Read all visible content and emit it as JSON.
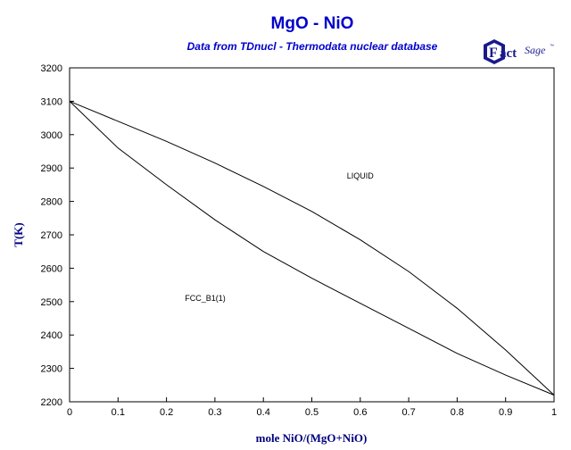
{
  "chart_data": {
    "type": "line",
    "title": "MgO - NiO",
    "subtitle": "Data from TDnucl - Thermodata nuclear database",
    "xlabel": "mole NiO/(MgO+NiO)",
    "ylabel": "T(K)",
    "xlim": [
      0,
      1
    ],
    "ylim": [
      2200,
      3200
    ],
    "x_ticks": [
      0,
      0.1,
      0.2,
      0.3,
      0.4,
      0.5,
      0.6,
      0.7,
      0.8,
      0.9,
      1
    ],
    "y_ticks": [
      2200,
      2300,
      2400,
      2500,
      2600,
      2700,
      2800,
      2900,
      3000,
      3100,
      3200
    ],
    "series": [
      {
        "x": [
          0,
          0.1,
          0.2,
          0.3,
          0.4,
          0.5,
          0.6,
          0.7,
          0.8,
          0.9,
          1
        ],
        "y": [
          3100,
          3040,
          2980,
          2915,
          2845,
          2770,
          2685,
          2590,
          2480,
          2355,
          2220
        ]
      },
      {
        "x": [
          0,
          0.1,
          0.2,
          0.3,
          0.4,
          0.5,
          0.6,
          0.7,
          0.8,
          0.9,
          1
        ],
        "y": [
          3100,
          2960,
          2850,
          2745,
          2650,
          2570,
          2495,
          2420,
          2345,
          2280,
          2220
        ]
      }
    ],
    "annotations": [
      {
        "text": "LIQUID",
        "x": 0.6,
        "y": 2868
      },
      {
        "text": "FCC_B1(1)",
        "x": 0.28,
        "y": 2502
      }
    ],
    "grid": false,
    "line_color": "#000000",
    "title_color": "#0000cc",
    "label_color": "#000080"
  },
  "logo": {
    "text": "FactSage",
    "mark": "™"
  }
}
